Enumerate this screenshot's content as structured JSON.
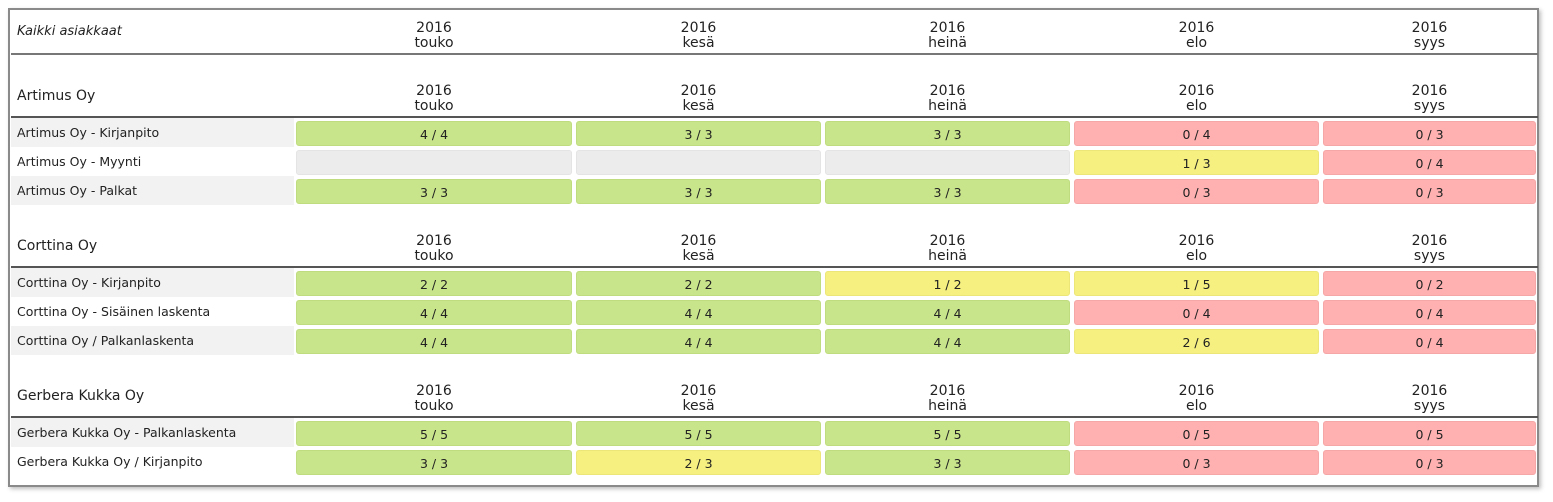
{
  "header": {
    "title": "Kaikki asiakkaat",
    "months": [
      {
        "year": "2016",
        "month": "touko"
      },
      {
        "year": "2016",
        "month": "kesä"
      },
      {
        "year": "2016",
        "month": "heinä"
      },
      {
        "year": "2016",
        "month": "elo"
      },
      {
        "year": "2016",
        "month": "syys"
      }
    ]
  },
  "colors": {
    "green": "#c9e58b",
    "yellow": "#f5f080",
    "red": "#ffb1b1",
    "empty": "#ececec"
  },
  "groups": [
    {
      "name": "Artimus Oy",
      "rows": [
        {
          "name": "Artimus Oy - Kirjanpito",
          "cells": [
            {
              "value": "4 / 4",
              "status": "green"
            },
            {
              "value": "3 / 3",
              "status": "green"
            },
            {
              "value": "3 / 3",
              "status": "green"
            },
            {
              "value": "0 / 4",
              "status": "red"
            },
            {
              "value": "0 / 3",
              "status": "red"
            }
          ]
        },
        {
          "name": "Artimus Oy - Myynti",
          "cells": [
            {
              "value": "",
              "status": "empty"
            },
            {
              "value": "",
              "status": "empty"
            },
            {
              "value": "",
              "status": "empty"
            },
            {
              "value": "1 / 3",
              "status": "yellow"
            },
            {
              "value": "0 / 4",
              "status": "red"
            }
          ]
        },
        {
          "name": "Artimus Oy - Palkat",
          "cells": [
            {
              "value": "3 / 3",
              "status": "green"
            },
            {
              "value": "3 / 3",
              "status": "green"
            },
            {
              "value": "3 / 3",
              "status": "green"
            },
            {
              "value": "0 / 3",
              "status": "red"
            },
            {
              "value": "0 / 3",
              "status": "red"
            }
          ]
        }
      ]
    },
    {
      "name": "Corttina Oy",
      "rows": [
        {
          "name": "Corttina Oy - Kirjanpito",
          "cells": [
            {
              "value": "2 / 2",
              "status": "green"
            },
            {
              "value": "2 / 2",
              "status": "green"
            },
            {
              "value": "1 / 2",
              "status": "yellow"
            },
            {
              "value": "1 / 5",
              "status": "yellow"
            },
            {
              "value": "0 / 2",
              "status": "red"
            }
          ]
        },
        {
          "name": "Corttina Oy - Sisäinen laskenta",
          "cells": [
            {
              "value": "4 / 4",
              "status": "green"
            },
            {
              "value": "4 / 4",
              "status": "green"
            },
            {
              "value": "4 / 4",
              "status": "green"
            },
            {
              "value": "0 / 4",
              "status": "red"
            },
            {
              "value": "0 / 4",
              "status": "red"
            }
          ]
        },
        {
          "name": "Corttina Oy / Palkanlaskenta",
          "cells": [
            {
              "value": "4 / 4",
              "status": "green"
            },
            {
              "value": "4 / 4",
              "status": "green"
            },
            {
              "value": "4 / 4",
              "status": "green"
            },
            {
              "value": "2 / 6",
              "status": "yellow"
            },
            {
              "value": "0 / 4",
              "status": "red"
            }
          ]
        }
      ]
    },
    {
      "name": "Gerbera Kukka Oy",
      "rows": [
        {
          "name": "Gerbera Kukka Oy - Palkanlaskenta",
          "cells": [
            {
              "value": "5 / 5",
              "status": "green"
            },
            {
              "value": "5 / 5",
              "status": "green"
            },
            {
              "value": "5 / 5",
              "status": "green"
            },
            {
              "value": "0 / 5",
              "status": "red"
            },
            {
              "value": "0 / 5",
              "status": "red"
            }
          ]
        },
        {
          "name": "Gerbera Kukka Oy / Kirjanpito",
          "cells": [
            {
              "value": "3 / 3",
              "status": "green"
            },
            {
              "value": "2 / 3",
              "status": "yellow"
            },
            {
              "value": "3 / 3",
              "status": "green"
            },
            {
              "value": "0 / 3",
              "status": "red"
            },
            {
              "value": "0 / 3",
              "status": "red"
            }
          ]
        }
      ]
    }
  ]
}
